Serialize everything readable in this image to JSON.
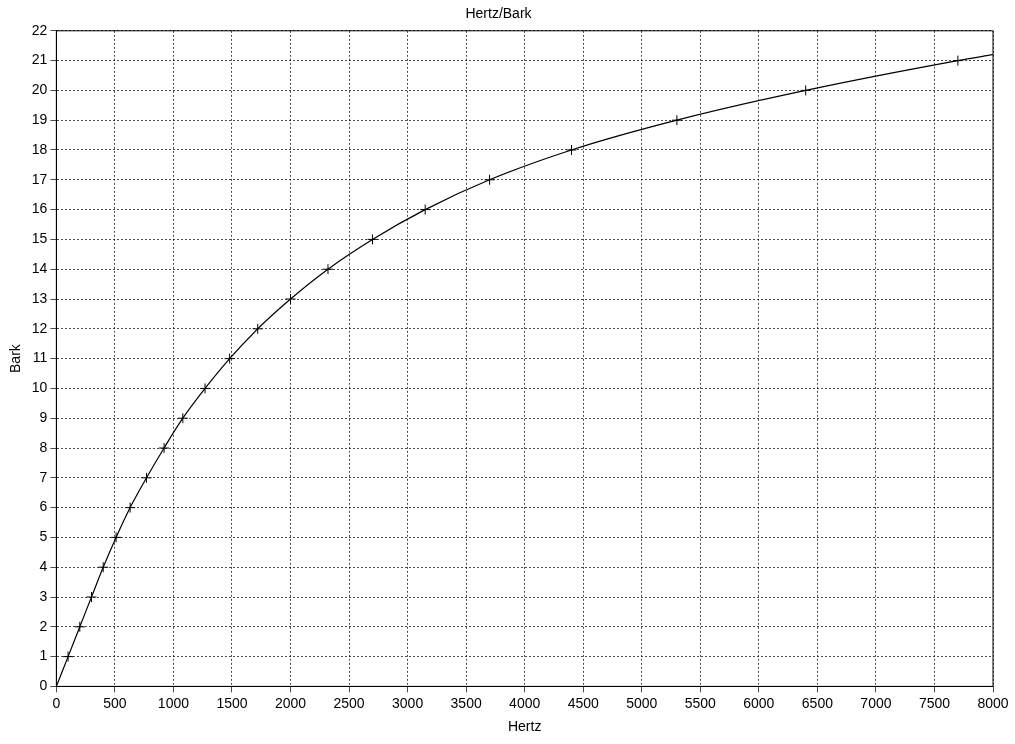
{
  "chart_data": {
    "type": "line",
    "title": "Hertz/Bark",
    "xlabel": "Hertz",
    "ylabel": "Bark",
    "xlim": [
      0,
      8000
    ],
    "xticks": [
      0,
      500,
      1000,
      1500,
      2000,
      2500,
      3000,
      3500,
      4000,
      4500,
      5000,
      5500,
      6000,
      6500,
      7000,
      7500,
      8000
    ],
    "ylim": [
      0,
      22
    ],
    "yticks": [
      0,
      1,
      2,
      3,
      4,
      5,
      6,
      7,
      8,
      9,
      10,
      11,
      12,
      13,
      14,
      15,
      16,
      17,
      18,
      19,
      20,
      21,
      22
    ],
    "grid": true,
    "legend": false,
    "line_style": "solid",
    "series": [
      {
        "type": "line",
        "marker": "none",
        "color": "#000000",
        "x": [
          0,
          100,
          200,
          300,
          400,
          510,
          630,
          770,
          920,
          1080,
          1270,
          1480,
          1720,
          2000,
          2320,
          2700,
          3150,
          3700,
          4400,
          5300,
          6400,
          7700,
          8000
        ],
        "values": [
          0,
          1,
          2,
          3,
          4,
          5,
          6,
          7,
          8,
          9,
          10,
          11,
          12,
          13,
          14,
          15,
          16,
          17,
          18,
          19,
          20,
          21,
          21.2
        ]
      },
      {
        "type": "scatter",
        "marker": "cross",
        "color": "#000000",
        "x": [
          100,
          200,
          300,
          400,
          510,
          630,
          770,
          920,
          1080,
          1270,
          1480,
          1720,
          2000,
          2320,
          2700,
          3150,
          3700,
          4400,
          5300,
          6400,
          7700
        ],
        "values": [
          1,
          2,
          3,
          4,
          5,
          6,
          7,
          8,
          9,
          10,
          11,
          12,
          13,
          14,
          15,
          16,
          17,
          18,
          19,
          20,
          21
        ]
      }
    ]
  }
}
